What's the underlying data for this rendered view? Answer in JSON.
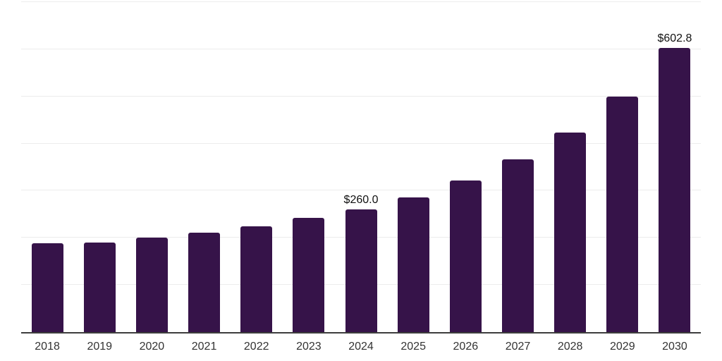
{
  "chart": {
    "background_color": "#ffffff",
    "bar_color": "#361349",
    "grid_color": "#ececec",
    "axis_line_color": "#3d3d3d",
    "value_label_color": "#111111",
    "tick_label_color": "#333333"
  },
  "chart_data": {
    "type": "bar",
    "title": "",
    "xlabel": "",
    "ylabel": "",
    "categories": [
      "2018",
      "2019",
      "2020",
      "2021",
      "2022",
      "2023",
      "2024",
      "2025",
      "2026",
      "2027",
      "2028",
      "2029",
      "2030"
    ],
    "values": [
      188,
      190,
      201,
      211,
      224,
      242,
      260.0,
      286,
      321,
      366,
      424,
      500,
      602.8
    ],
    "data_labels": {
      "2024": "$260.0",
      "2030": "$602.8"
    },
    "ylim": [
      0,
      700
    ],
    "gridline_step": 100,
    "grid": true,
    "legend": false,
    "y_axis_tick_labels_visible": false
  }
}
